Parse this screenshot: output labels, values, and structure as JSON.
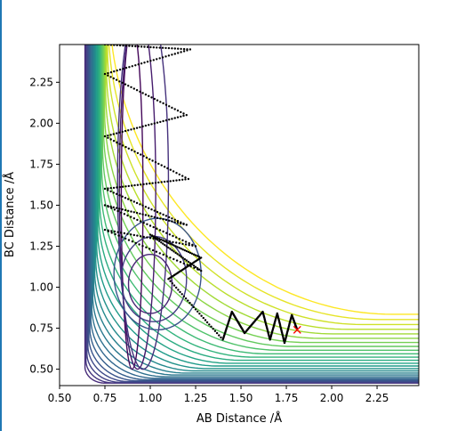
{
  "chart_data": {
    "type": "contour",
    "xlabel": "AB Distance /Å",
    "ylabel": "BC Distance /Å",
    "xlim": [
      0.5,
      2.48
    ],
    "ylim": [
      0.4,
      2.48
    ],
    "xticks": [
      "0.50",
      "0.75",
      "1.00",
      "1.25",
      "1.50",
      "1.75",
      "2.00",
      "2.25"
    ],
    "yticks": [
      "0.50",
      "0.75",
      "1.00",
      "1.25",
      "1.50",
      "1.75",
      "2.00",
      "2.25"
    ],
    "colormap": [
      "#440154",
      "#482878",
      "#3e4989",
      "#31688e",
      "#26828e",
      "#1f9e89",
      "#35b779",
      "#6ece58",
      "#b5de2b",
      "#fde725"
    ],
    "trajectory_color": "#000000",
    "endpoint": {
      "x": 1.81,
      "y": 0.74,
      "marker": "x",
      "color": "#ff0000"
    }
  }
}
